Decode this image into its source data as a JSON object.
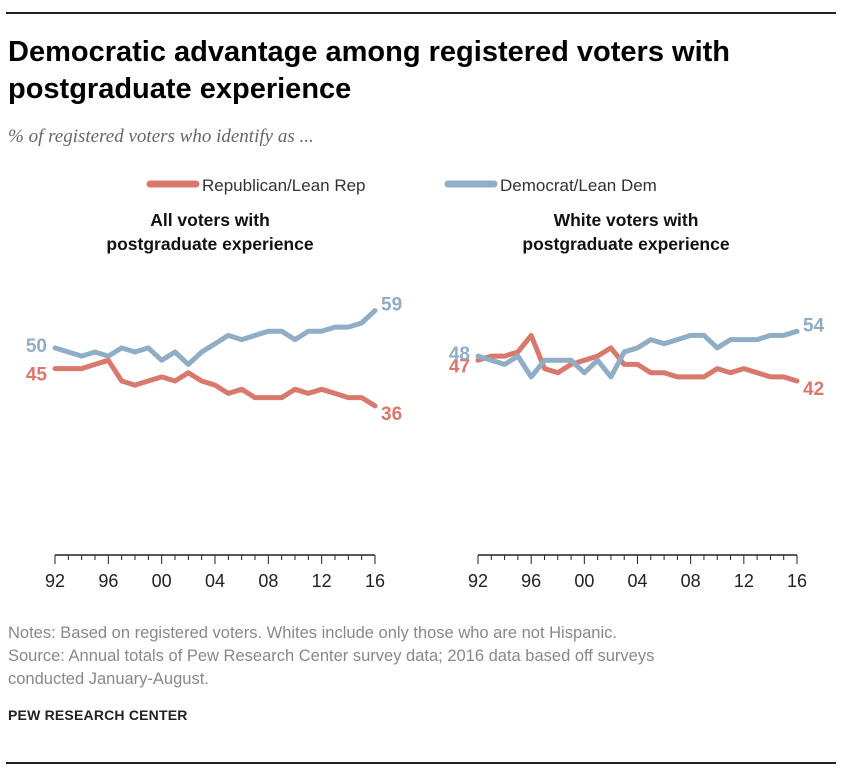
{
  "title_line1": "Democratic advantage among registered voters with",
  "title_line2": "postgraduate experience",
  "subtitle": "% of registered voters who identify as ...",
  "legend": {
    "republican": "Republican/Lean Rep",
    "democrat": "Democrat/Lean Dem"
  },
  "colors": {
    "republican": "#d9786d",
    "democrat": "#8fadc4",
    "axis": "#222222"
  },
  "notes": {
    "line1": "Notes: Based on registered voters. Whites include only those who are not Hispanic.",
    "line2": "Source: Annual totals of Pew Research Center survey data; 2016 data based off surveys",
    "line3": "conducted January-August."
  },
  "source_label": "PEW RESEARCH CENTER",
  "chart_data": [
    {
      "type": "line",
      "title_line1": "All voters with",
      "title_line2": "postgraduate experience",
      "x": [
        1992,
        1993,
        1994,
        1995,
        1996,
        1997,
        1998,
        1999,
        2000,
        2001,
        2002,
        2003,
        2004,
        2005,
        2006,
        2007,
        2008,
        2009,
        2010,
        2011,
        2012,
        2013,
        2014,
        2015,
        2016
      ],
      "x_ticks": [
        1992,
        1996,
        2000,
        2004,
        2008,
        2012,
        2016
      ],
      "x_tick_labels": [
        "92",
        "96",
        "00",
        "04",
        "08",
        "12",
        "16"
      ],
      "ylim": [
        0,
        70
      ],
      "series": [
        {
          "name": "Republican/Lean Rep",
          "values": [
            45,
            45,
            45,
            46,
            47,
            42,
            41,
            42,
            43,
            42,
            44,
            42,
            41,
            39,
            40,
            38,
            38,
            38,
            40,
            39,
            40,
            39,
            38,
            38,
            36
          ],
          "start_label": "45",
          "end_label": "36"
        },
        {
          "name": "Democrat/Lean Dem",
          "values": [
            50,
            49,
            48,
            49,
            48,
            50,
            49,
            50,
            47,
            49,
            46,
            49,
            51,
            53,
            52,
            53,
            54,
            54,
            52,
            54,
            54,
            55,
            55,
            56,
            59
          ],
          "start_label": "50",
          "end_label": "59"
        }
      ]
    },
    {
      "type": "line",
      "title_line1": "White voters with",
      "title_line2": "postgraduate experience",
      "x": [
        1992,
        1993,
        1994,
        1995,
        1996,
        1997,
        1998,
        1999,
        2000,
        2001,
        2002,
        2003,
        2004,
        2005,
        2006,
        2007,
        2008,
        2009,
        2010,
        2011,
        2012,
        2013,
        2014,
        2015,
        2016
      ],
      "x_ticks": [
        1992,
        1996,
        2000,
        2004,
        2008,
        2012,
        2016
      ],
      "x_tick_labels": [
        "92",
        "96",
        "00",
        "04",
        "08",
        "12",
        "16"
      ],
      "ylim": [
        0,
        70
      ],
      "series": [
        {
          "name": "Republican/Lean Rep",
          "values": [
            47,
            48,
            48,
            49,
            53,
            45,
            44,
            46,
            47,
            48,
            50,
            46,
            46,
            44,
            44,
            43,
            43,
            43,
            45,
            44,
            45,
            44,
            43,
            43,
            42
          ],
          "start_label": "47",
          "end_label": "42"
        },
        {
          "name": "Democrat/Lean Dem",
          "values": [
            48,
            47,
            46,
            48,
            43,
            47,
            47,
            47,
            44,
            47,
            43,
            49,
            50,
            52,
            51,
            52,
            53,
            53,
            50,
            52,
            52,
            52,
            53,
            53,
            54
          ],
          "start_label": "48",
          "end_label": "54"
        }
      ]
    }
  ]
}
